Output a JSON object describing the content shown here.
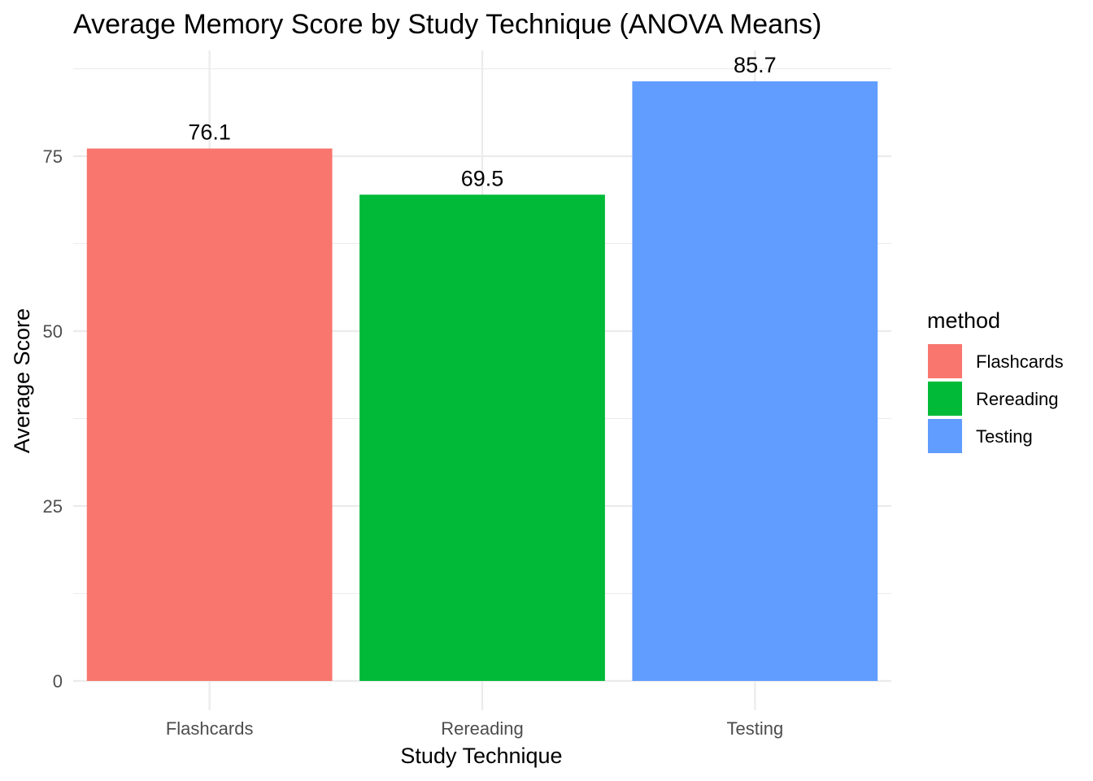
{
  "chart_data": {
    "type": "bar",
    "title": "Average Memory Score by Study Technique (ANOVA Means)",
    "xlabel": "Study Technique",
    "ylabel": "Average Score",
    "categories": [
      "Flashcards",
      "Rereading",
      "Testing"
    ],
    "values": [
      76.1,
      69.5,
      85.7
    ],
    "value_labels": [
      "76.1",
      "69.5",
      "85.7"
    ],
    "colors": [
      "#F8766D",
      "#00BA38",
      "#619CFF"
    ],
    "ylim": [
      0,
      90
    ],
    "yticks": [
      0,
      25,
      50,
      75
    ],
    "ytick_labels": [
      "0",
      "25",
      "50",
      "75"
    ],
    "grid": true,
    "legend": {
      "title": "method",
      "position": "right",
      "entries": [
        "Flashcards",
        "Rereading",
        "Testing"
      ]
    }
  }
}
